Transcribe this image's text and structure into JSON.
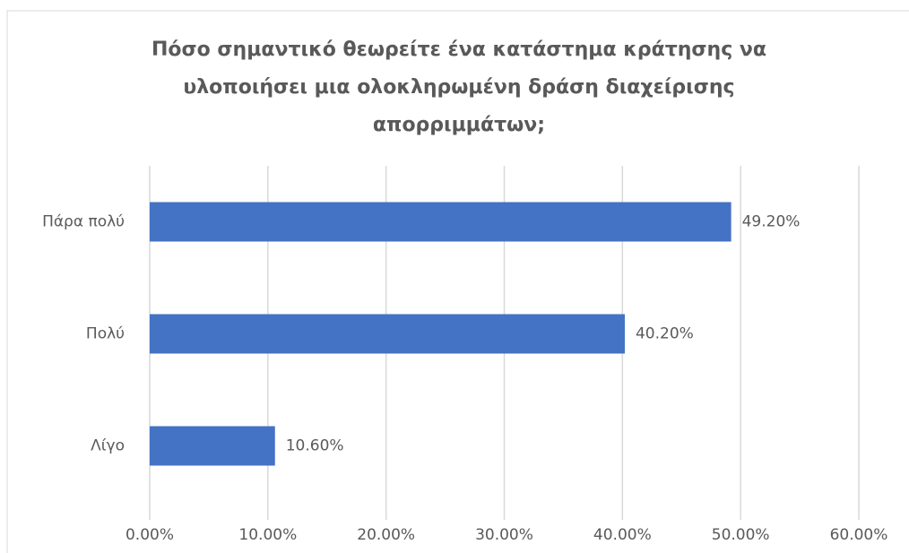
{
  "chart_data": {
    "type": "bar",
    "orientation": "horizontal",
    "title": [
      "Πόσο σημαντικό θεωρείτε ένα κατάστημα κράτησης να",
      "υλοποιήσει μια ολοκληρωμένη δράση διαχείρισης",
      "απορριμμάτων;"
    ],
    "categories": [
      "Πάρα πολύ",
      "Πολύ",
      "Λίγο"
    ],
    "values": [
      49.2,
      40.2,
      10.6
    ],
    "value_labels": [
      "49.20%",
      "40.20%",
      "10.60%"
    ],
    "color": "#4472c4",
    "xlim": [
      0,
      60
    ],
    "xticks": [
      {
        "value": 0,
        "label": "0.00%"
      },
      {
        "value": 10,
        "label": "10.00%"
      },
      {
        "value": 20,
        "label": "20.00%"
      },
      {
        "value": 30,
        "label": "30.00%"
      },
      {
        "value": 40,
        "label": "40.00%"
      },
      {
        "value": 50,
        "label": "50.00%"
      },
      {
        "value": 60,
        "label": "60.00%"
      }
    ],
    "grid": true
  }
}
